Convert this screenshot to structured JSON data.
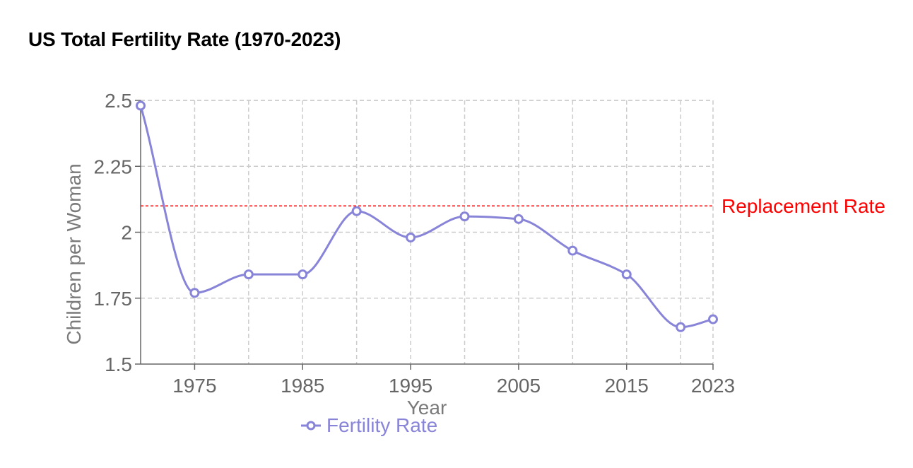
{
  "chart_data": {
    "type": "line",
    "title": "US Total Fertility Rate (1970-2023)",
    "xlabel": "Year",
    "ylabel": "Children per Woman",
    "x": [
      1970,
      1975,
      1980,
      1985,
      1990,
      1995,
      2000,
      2005,
      2010,
      2015,
      2020,
      2023
    ],
    "xlim": [
      1970,
      2023
    ],
    "x_ticks": [
      1975,
      1985,
      1995,
      2005,
      2015,
      2023
    ],
    "ylim": [
      1.5,
      2.5
    ],
    "y_ticks": [
      1.5,
      1.75,
      2,
      2.25,
      2.5
    ],
    "y_tick_labels": [
      "1.5",
      "1.75",
      "2",
      "2.25",
      "2.5"
    ],
    "grid": true,
    "legend_position": "bottom",
    "series": [
      {
        "name": "Fertility Rate",
        "color": "#8884d8",
        "values": [
          2.48,
          1.77,
          1.84,
          1.84,
          2.08,
          1.98,
          2.06,
          2.05,
          1.93,
          1.84,
          1.64,
          1.67
        ]
      }
    ],
    "reference_line": {
      "y": 2.1,
      "label": "Replacement Rate",
      "color": "#ff0000"
    }
  }
}
